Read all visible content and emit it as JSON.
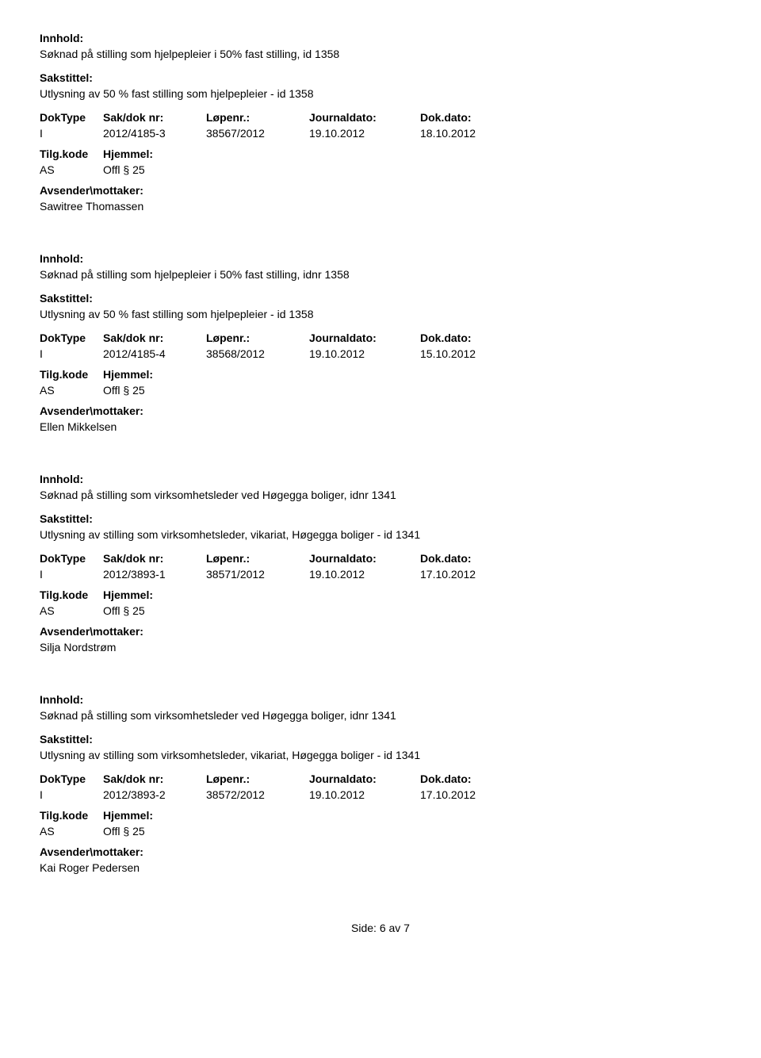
{
  "labels": {
    "innhold": "Innhold:",
    "sakstittel": "Sakstittel:",
    "doktype": "DokType",
    "saknr": "Sak/dok nr:",
    "lopenr": "Løpenr.:",
    "journaldato": "Journaldato:",
    "dokdato": "Dok.dato:",
    "tilgkode": "Tilg.kode",
    "hjemmel": "Hjemmel:",
    "avsender": "Avsender\\mottaker:"
  },
  "records": [
    {
      "innhold": "Søknad på stilling som hjelpepleier i 50% fast stilling, id 1358",
      "sakstittel": "Utlysning av 50 % fast stilling som hjelpepleier - id 1358",
      "doktype": "I",
      "saknr": "2012/4185-3",
      "lopenr": "38567/2012",
      "journaldato": "19.10.2012",
      "dokdato": "18.10.2012",
      "tilgkode": "AS",
      "hjemmel": "Offl § 25",
      "avsender": "Sawitree Thomassen"
    },
    {
      "innhold": "Søknad på stilling som hjelpepleier i 50% fast stilling, idnr 1358",
      "sakstittel": "Utlysning av 50 % fast stilling som hjelpepleier - id 1358",
      "doktype": "I",
      "saknr": "2012/4185-4",
      "lopenr": "38568/2012",
      "journaldato": "19.10.2012",
      "dokdato": "15.10.2012",
      "tilgkode": "AS",
      "hjemmel": "Offl § 25",
      "avsender": "Ellen Mikkelsen"
    },
    {
      "innhold": "Søknad på stilling som virksomhetsleder ved Høgegga boliger, idnr 1341",
      "sakstittel": "Utlysning av stilling som virksomhetsleder, vikariat, Høgegga boliger - id 1341",
      "doktype": "I",
      "saknr": "2012/3893-1",
      "lopenr": "38571/2012",
      "journaldato": "19.10.2012",
      "dokdato": "17.10.2012",
      "tilgkode": "AS",
      "hjemmel": "Offl § 25",
      "avsender": "Silja Nordstrøm"
    },
    {
      "innhold": "Søknad på stilling som virksomhetsleder ved Høgegga boliger, idnr 1341",
      "sakstittel": "Utlysning av stilling som virksomhetsleder, vikariat, Høgegga boliger - id 1341",
      "doktype": "I",
      "saknr": "2012/3893-2",
      "lopenr": "38572/2012",
      "journaldato": "19.10.2012",
      "dokdato": "17.10.2012",
      "tilgkode": "AS",
      "hjemmel": "Offl § 25",
      "avsender": "Kai Roger Pedersen"
    }
  ],
  "footer": "Side: 6 av 7"
}
